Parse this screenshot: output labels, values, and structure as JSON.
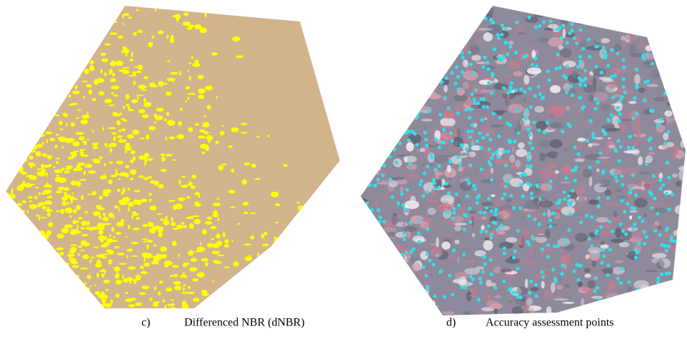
{
  "panels": [
    {
      "letter": "c)",
      "caption": "Differenced NBR (dNBR)"
    },
    {
      "letter": "d)",
      "caption": "Accuracy assessment points"
    }
  ]
}
